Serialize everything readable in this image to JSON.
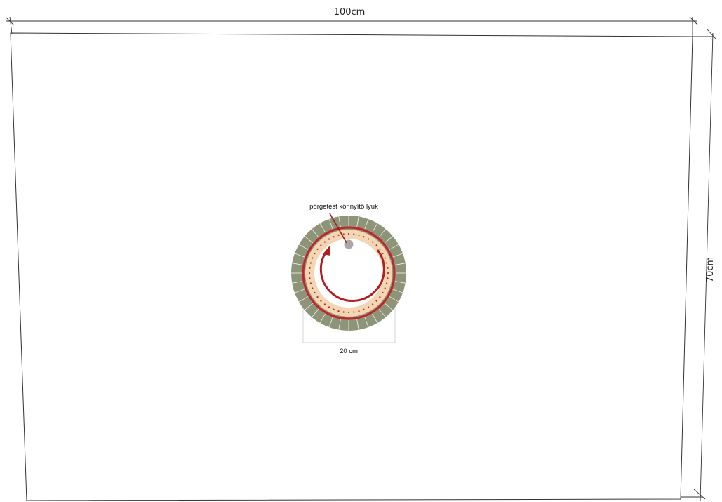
{
  "dimensions": {
    "width_label": "100cm",
    "height_label": "70cm",
    "disc_diameter_label": "20 cm"
  },
  "annotation": {
    "label": "pörgetést könnyítő lyuk"
  },
  "colors": {
    "outline": "#333333",
    "outer_ring": "#8e9478",
    "inner_ring": "#f3d6b3",
    "red_accent": "#c0262b",
    "dark_red": "#9e1b1f",
    "hole": "#a8a8a8"
  }
}
